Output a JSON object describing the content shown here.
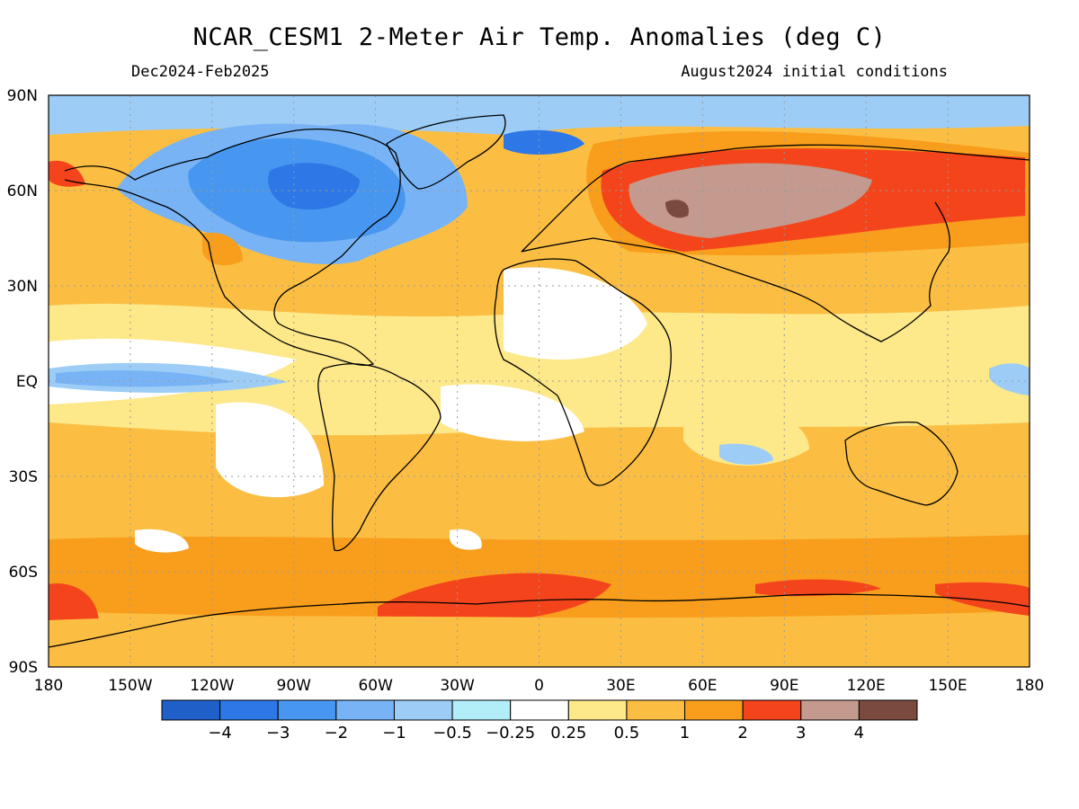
{
  "header": {
    "title": "NCAR_CESM1 2-Meter Air Temp. Anomalies (deg C)",
    "season": "Dec2024-Feb2025",
    "init": "August2024 initial conditions"
  },
  "axes": {
    "lon_ticks": [
      "180",
      "150W",
      "120W",
      "90W",
      "60W",
      "30W",
      "0",
      "30E",
      "60E",
      "90E",
      "120E",
      "150E",
      "180"
    ],
    "lat_ticks": [
      "90N",
      "60N",
      "30N",
      "EQ",
      "30S",
      "60S",
      "90S"
    ],
    "lon_range": [
      -180,
      180
    ],
    "lat_range": [
      -90,
      90
    ],
    "grid": true
  },
  "colorbar": {
    "colors": [
      "#1f5fc8",
      "#2e77e6",
      "#4797f0",
      "#78b4f5",
      "#9dcdf7",
      "#b2eef8",
      "#ffffff",
      "#fde88a",
      "#fbbe43",
      "#f89e1c",
      "#f4441c",
      "#c49a8e",
      "#7b4a3f"
    ],
    "labels": [
      "-4",
      "-3",
      "-2",
      "-1",
      "-0.5",
      "-0.25",
      "0.25",
      "0.5",
      "1",
      "2",
      "3",
      "4"
    ]
  },
  "map_regions": [
    {
      "name": "ocean-background",
      "color": "#fbbe43"
    },
    {
      "name": "southern-band",
      "color": "#f89e1c"
    },
    {
      "name": "north-america-cold",
      "color": "#4797f0"
    },
    {
      "name": "siberia-warm",
      "color": "#f4441c"
    },
    {
      "name": "siberia-very-warm",
      "color": "#c49a8e"
    },
    {
      "name": "antarctic-warm",
      "color": "#f4441c"
    },
    {
      "name": "near-normal",
      "color": "#ffffff"
    },
    {
      "name": "slightly-cool",
      "color": "#9dcdf7"
    }
  ]
}
